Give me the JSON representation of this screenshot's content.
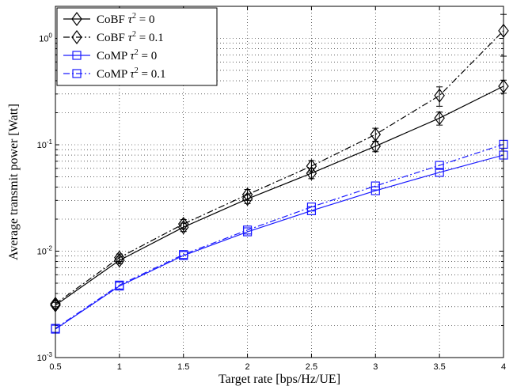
{
  "chart_data": {
    "type": "line",
    "title": "",
    "xlabel": "Target rate [bps/Hz/UE]",
    "ylabel": "Average transmit power [Watt]",
    "xlim": [
      0.5,
      4
    ],
    "ylim": [
      0.001,
      2
    ],
    "yscale": "log",
    "grid": true,
    "legend_position": "top-left",
    "x_ticks": [
      "0.5",
      "1",
      "1.5",
      "2",
      "2.5",
      "3",
      "3.5",
      "4"
    ],
    "y_tick_labels": [
      {
        "base": "10",
        "exp": "-3",
        "value": 0.001
      },
      {
        "base": "10",
        "exp": "-2",
        "value": 0.01
      },
      {
        "base": "10",
        "exp": "-1",
        "value": 0.1
      },
      {
        "base": "10",
        "exp": "0",
        "value": 1
      }
    ],
    "x": [
      0.5,
      1,
      1.5,
      2,
      2.5,
      3,
      3.5,
      4
    ],
    "series": [
      {
        "name": "CoBF τ² = 0",
        "name_prefix": "CoBF ",
        "name_tau": "τ",
        "name_exp": "2",
        "name_suffix": " = 0",
        "color": "#000000",
        "line_style": "solid",
        "marker": "diamond",
        "values": [
          0.0031,
          0.0082,
          0.0168,
          0.031,
          0.054,
          0.097,
          0.178,
          0.355
        ],
        "error": [
          0.0002,
          0.0006,
          0.0015,
          0.003,
          0.006,
          0.011,
          0.025,
          0.05
        ]
      },
      {
        "name": "CoBF τ² = 0.1",
        "name_prefix": "CoBF ",
        "name_tau": "τ",
        "name_exp": "2",
        "name_suffix": " = 0.1",
        "color": "#000000",
        "line_style": "dashdot",
        "marker": "diamond",
        "values": [
          0.0032,
          0.0087,
          0.018,
          0.034,
          0.063,
          0.125,
          0.29,
          1.18
        ],
        "error": [
          0.0002,
          0.0007,
          0.0018,
          0.004,
          0.008,
          0.018,
          0.06,
          0.5
        ]
      },
      {
        "name": "CoMP τ² = 0",
        "name_prefix": "CoMP ",
        "name_tau": "τ",
        "name_exp": "2",
        "name_suffix": " = 0",
        "color": "#1a1aff",
        "line_style": "solid",
        "marker": "square",
        "values": [
          0.00185,
          0.0047,
          0.0091,
          0.0152,
          0.024,
          0.037,
          0.055,
          0.08
        ],
        "error": [
          0,
          0,
          0,
          0,
          0,
          0,
          0,
          0
        ]
      },
      {
        "name": "CoMP τ² = 0.1",
        "name_prefix": "CoMP ",
        "name_tau": "τ",
        "name_exp": "2",
        "name_suffix": " = 0.1",
        "color": "#1a1aff",
        "line_style": "dashdot",
        "marker": "square",
        "values": [
          0.00188,
          0.0048,
          0.0093,
          0.0158,
          0.026,
          0.041,
          0.064,
          0.101
        ],
        "error": [
          0,
          0,
          0,
          0,
          0,
          0,
          0,
          0
        ]
      }
    ]
  }
}
